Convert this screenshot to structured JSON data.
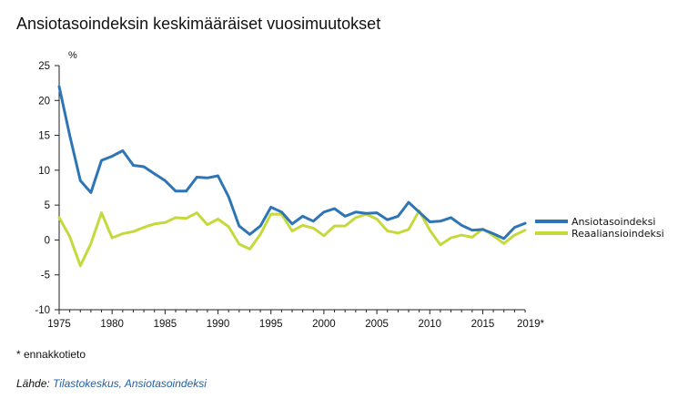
{
  "title": "Ansiotasoindeksin keskimääräiset vuosimuutokset",
  "footnote": "* ennakkotieto",
  "source": {
    "prefix": "Lähde:",
    "link": "Tilastokeskus, Ansiotasoindeksi"
  },
  "chart_data": {
    "type": "line",
    "ylabel": "%",
    "xlabel": "",
    "ylim": [
      -10,
      25
    ],
    "xlim": [
      1975,
      2019
    ],
    "yticks": [
      25,
      20,
      15,
      10,
      5,
      0,
      -5,
      -10
    ],
    "xticks": [
      "1975",
      "1980",
      "1985",
      "1990",
      "1995",
      "2000",
      "2005",
      "2010",
      "2015",
      "2019*"
    ],
    "grid": false,
    "legend_position": "right",
    "x": [
      1975,
      1976,
      1977,
      1978,
      1979,
      1980,
      1981,
      1982,
      1983,
      1984,
      1985,
      1986,
      1987,
      1988,
      1989,
      1990,
      1991,
      1992,
      1993,
      1994,
      1995,
      1996,
      1997,
      1998,
      1999,
      2000,
      2001,
      2002,
      2003,
      2004,
      2005,
      2006,
      2007,
      2008,
      2009,
      2010,
      2011,
      2012,
      2013,
      2014,
      2015,
      2016,
      2017,
      2018,
      2019
    ],
    "series": [
      {
        "name": "Ansiotasoindeksi",
        "color": "#2e75b6",
        "values": [
          22.0,
          15.0,
          8.5,
          6.8,
          11.4,
          12.0,
          12.8,
          10.7,
          10.5,
          9.5,
          8.5,
          7.0,
          7.0,
          9.0,
          8.9,
          9.2,
          6.2,
          2.0,
          0.8,
          2.0,
          4.7,
          4.0,
          2.3,
          3.4,
          2.7,
          4.0,
          4.5,
          3.4,
          4.0,
          3.8,
          3.9,
          2.9,
          3.4,
          5.4,
          4.0,
          2.6,
          2.7,
          3.2,
          2.1,
          1.4,
          1.5,
          0.9,
          0.2,
          1.8,
          2.4
        ]
      },
      {
        "name": "Reaaliansioindeksi",
        "color": "#c5d93c",
        "values": [
          3.2,
          0.5,
          -3.7,
          -0.5,
          3.9,
          0.3,
          0.9,
          1.2,
          1.8,
          2.3,
          2.5,
          3.2,
          3.1,
          3.9,
          2.2,
          3.0,
          1.9,
          -0.6,
          -1.3,
          0.8,
          3.7,
          3.7,
          1.3,
          2.1,
          1.7,
          0.6,
          2.0,
          2.0,
          3.2,
          3.7,
          3.0,
          1.3,
          1.0,
          1.5,
          4.2,
          1.4,
          -0.7,
          0.3,
          0.7,
          0.4,
          1.6,
          0.6,
          -0.5,
          0.7,
          1.4
        ]
      }
    ]
  }
}
